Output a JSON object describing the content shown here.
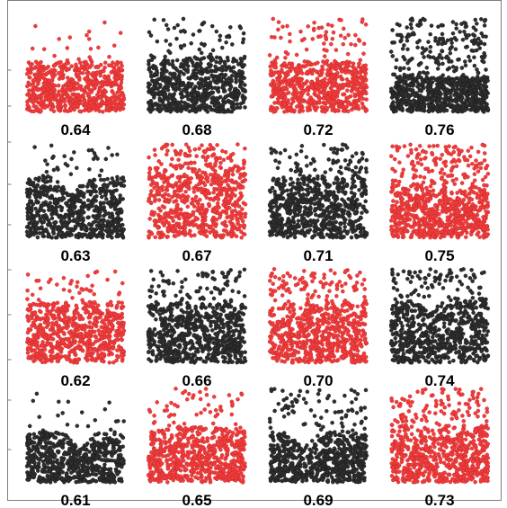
{
  "chart_data": {
    "type": "scatter",
    "title": "",
    "xlabel": "",
    "ylabel": "",
    "grid": false,
    "legend": "none",
    "colors": {
      "red": "#f03c3c",
      "black": "#2e2e2e",
      "frame": "#7f7f7f"
    },
    "layout": {
      "rows": 4,
      "cols": 4
    },
    "panels": [
      {
        "label": "0.64",
        "color": "red",
        "row": 0,
        "col": 0,
        "seed": 11,
        "band": [
          0.45,
          0.95
        ],
        "sparse": 0.03,
        "dip": null
      },
      {
        "label": "0.68",
        "color": "black",
        "row": 0,
        "col": 1,
        "seed": 23,
        "band": [
          0.4,
          0.95
        ],
        "sparse": 0.08,
        "dip": null
      },
      {
        "label": "0.72",
        "color": "red",
        "row": 0,
        "col": 2,
        "seed": 37,
        "band": [
          0.45,
          0.95
        ],
        "sparse": 0.1,
        "dip": null
      },
      {
        "label": "0.76",
        "color": "black",
        "row": 0,
        "col": 3,
        "seed": 41,
        "band": [
          0.6,
          0.95
        ],
        "sparse": 0.3,
        "dip": null
      },
      {
        "label": "0.63",
        "color": "black",
        "row": 1,
        "col": 0,
        "seed": 53,
        "band": [
          0.35,
          0.95
        ],
        "sparse": 0.05,
        "dip": 0.45
      },
      {
        "label": "0.67",
        "color": "red",
        "row": 1,
        "col": 1,
        "seed": 67,
        "band": [
          0.2,
          0.95
        ],
        "sparse": 0.1,
        "dip": null
      },
      {
        "label": "0.71",
        "color": "black",
        "row": 1,
        "col": 2,
        "seed": 71,
        "band": [
          0.35,
          0.95
        ],
        "sparse": 0.12,
        "dip": null
      },
      {
        "label": "0.75",
        "color": "red",
        "row": 1,
        "col": 3,
        "seed": 83,
        "band": [
          0.45,
          0.95
        ],
        "sparse": 0.25,
        "dip": null
      },
      {
        "label": "0.62",
        "color": "red",
        "row": 2,
        "col": 0,
        "seed": 97,
        "band": [
          0.35,
          0.95
        ],
        "sparse": 0.06,
        "dip": null
      },
      {
        "label": "0.66",
        "color": "black",
        "row": 2,
        "col": 1,
        "seed": 101,
        "band": [
          0.35,
          0.95
        ],
        "sparse": 0.12,
        "dip": null
      },
      {
        "label": "0.70",
        "color": "red",
        "row": 2,
        "col": 2,
        "seed": 113,
        "band": [
          0.35,
          0.95
        ],
        "sparse": 0.15,
        "dip": null
      },
      {
        "label": "0.74",
        "color": "black",
        "row": 2,
        "col": 3,
        "seed": 127,
        "band": [
          0.3,
          0.95
        ],
        "sparse": 0.12,
        "dip": 0.4
      },
      {
        "label": "0.61",
        "color": "black",
        "row": 3,
        "col": 0,
        "seed": 131,
        "band": [
          0.45,
          0.95
        ],
        "sparse": 0.03,
        "dip": 0.55
      },
      {
        "label": "0.65",
        "color": "red",
        "row": 3,
        "col": 1,
        "seed": 149,
        "band": [
          0.4,
          0.95
        ],
        "sparse": 0.08,
        "dip": null
      },
      {
        "label": "0.69",
        "color": "black",
        "row": 3,
        "col": 2,
        "seed": 157,
        "band": [
          0.45,
          0.95
        ],
        "sparse": 0.12,
        "dip": 0.35
      },
      {
        "label": "0.73",
        "color": "red",
        "row": 3,
        "col": 3,
        "seed": 163,
        "band": [
          0.4,
          0.95
        ],
        "sparse": 0.18,
        "dip": null
      }
    ]
  }
}
